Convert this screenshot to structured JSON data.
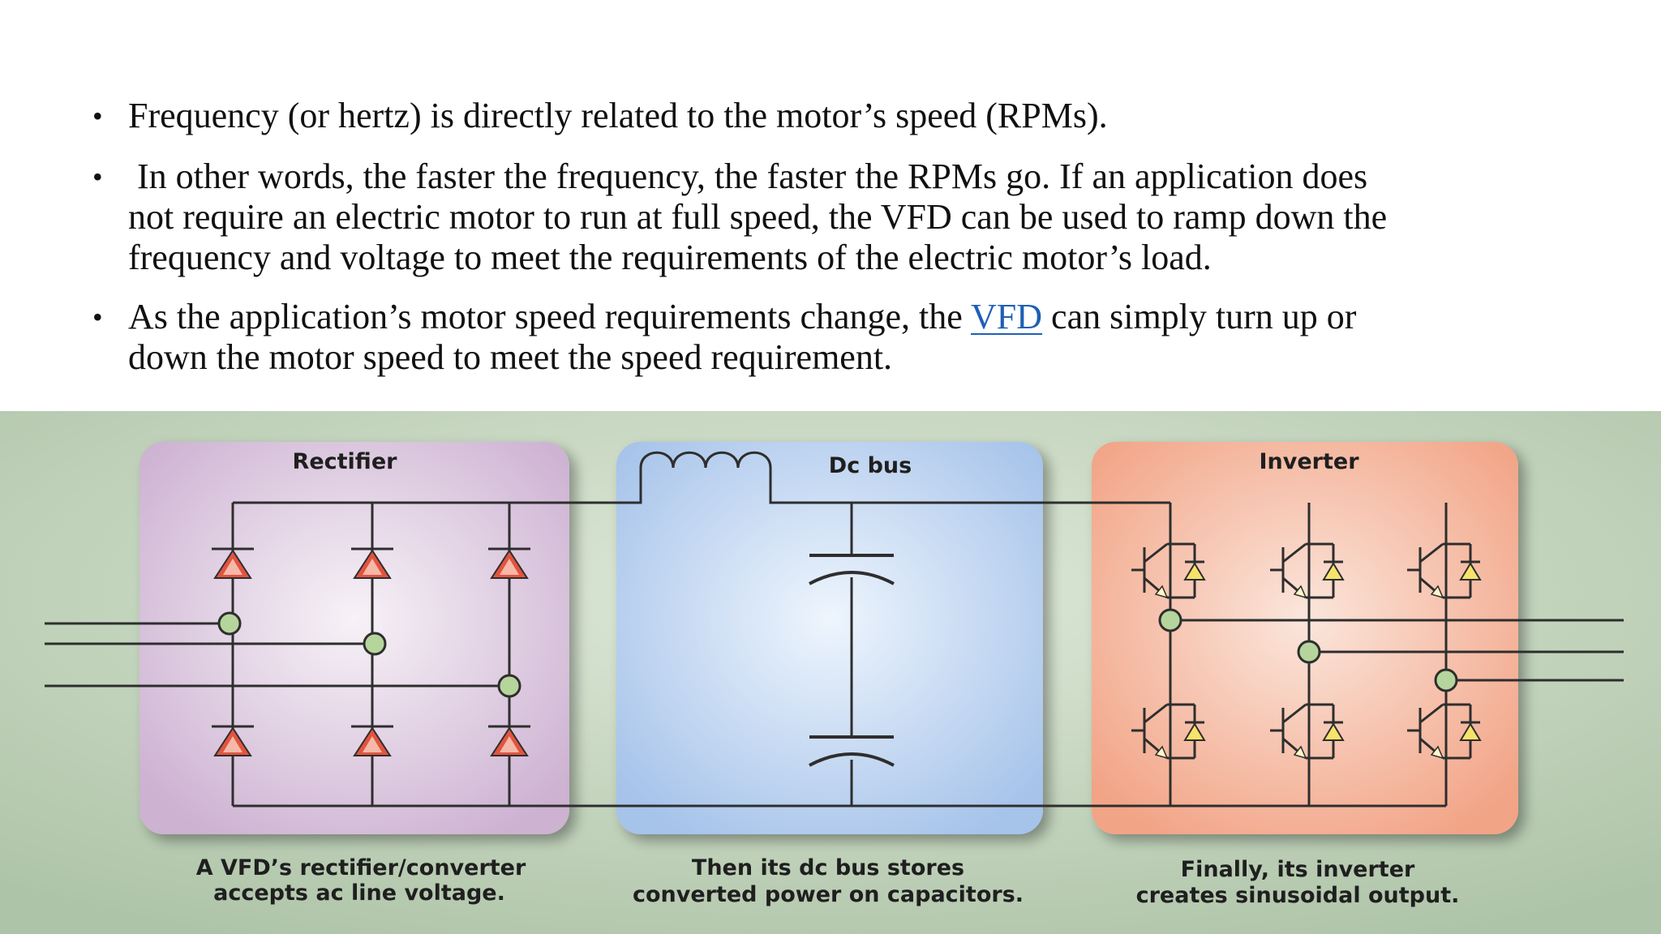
{
  "slide": {
    "bullets": [
      {
        "lines": [
          "Frequency (or hertz) is directly related to the motor’s speed (RPMs)."
        ]
      },
      {
        "lines": [
          " In other words, the faster the frequency, the faster the RPMs go. If an application does",
          "not require an electric motor to run at full speed, the VFD can be used to ramp down the",
          "frequency and voltage to meet the requirements of the electric motor’s load."
        ]
      },
      {
        "before": "As the application’s motor speed requirements change, the ",
        "link": "VFD",
        "after": " can simply turn up or",
        "line2": "down the motor speed to meet the speed requirement."
      }
    ],
    "bullet_symbol": "•"
  },
  "diagram": {
    "rectifier": {
      "title": "Rectifier",
      "caption": [
        "A VFD’s rectifier/converter",
        "accepts ac line voltage."
      ]
    },
    "dc_bus": {
      "title": "Dc bus",
      "caption": [
        "Then its dc bus stores",
        "converted power on capacitors."
      ]
    },
    "inverter": {
      "title": "Inverter",
      "caption": [
        "Finally, its inverter",
        "creates sinusoidal output."
      ]
    },
    "colors": {
      "background": "#b9cdb3",
      "rectifier": "#d9c3dc",
      "dc_bus": "#b3cdee",
      "inverter": "#f5b298",
      "diode": "#e2543f",
      "junction": "#b6d59c",
      "wire": "#2e2e2e"
    }
  }
}
